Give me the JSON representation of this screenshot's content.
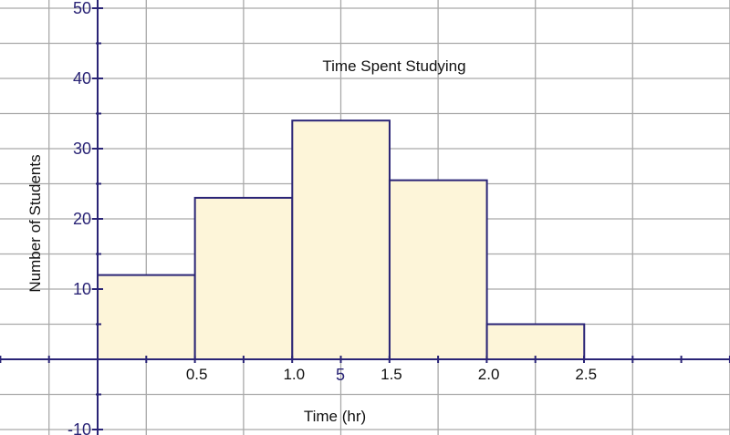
{
  "chart_data": {
    "type": "bar",
    "title": "Time Spent Studying",
    "xlabel": "Time (hr)",
    "ylabel": "Number of Students",
    "bins": [
      {
        "from": 0.0,
        "to": 0.5,
        "value": 12
      },
      {
        "from": 0.5,
        "to": 1.0,
        "value": 23
      },
      {
        "from": 1.0,
        "to": 1.5,
        "value": 34
      },
      {
        "from": 1.5,
        "to": 2.0,
        "value": 25.5
      },
      {
        "from": 2.0,
        "to": 2.5,
        "value": 5
      }
    ],
    "x_tick_labels": [
      "0.5",
      "1.0",
      "1.5",
      "2.0",
      "2.5"
    ],
    "y_tick_labels": [
      "50",
      "40",
      "30",
      "20",
      "10",
      "-10"
    ],
    "extra_axis_label": "5",
    "ylim": [
      -10,
      50
    ],
    "grid": true,
    "colors": {
      "bar_fill": "#fdf5d9",
      "bar_stroke": "#2a2476",
      "axis": "#2a2476",
      "grid": "#a9a9a9"
    }
  }
}
